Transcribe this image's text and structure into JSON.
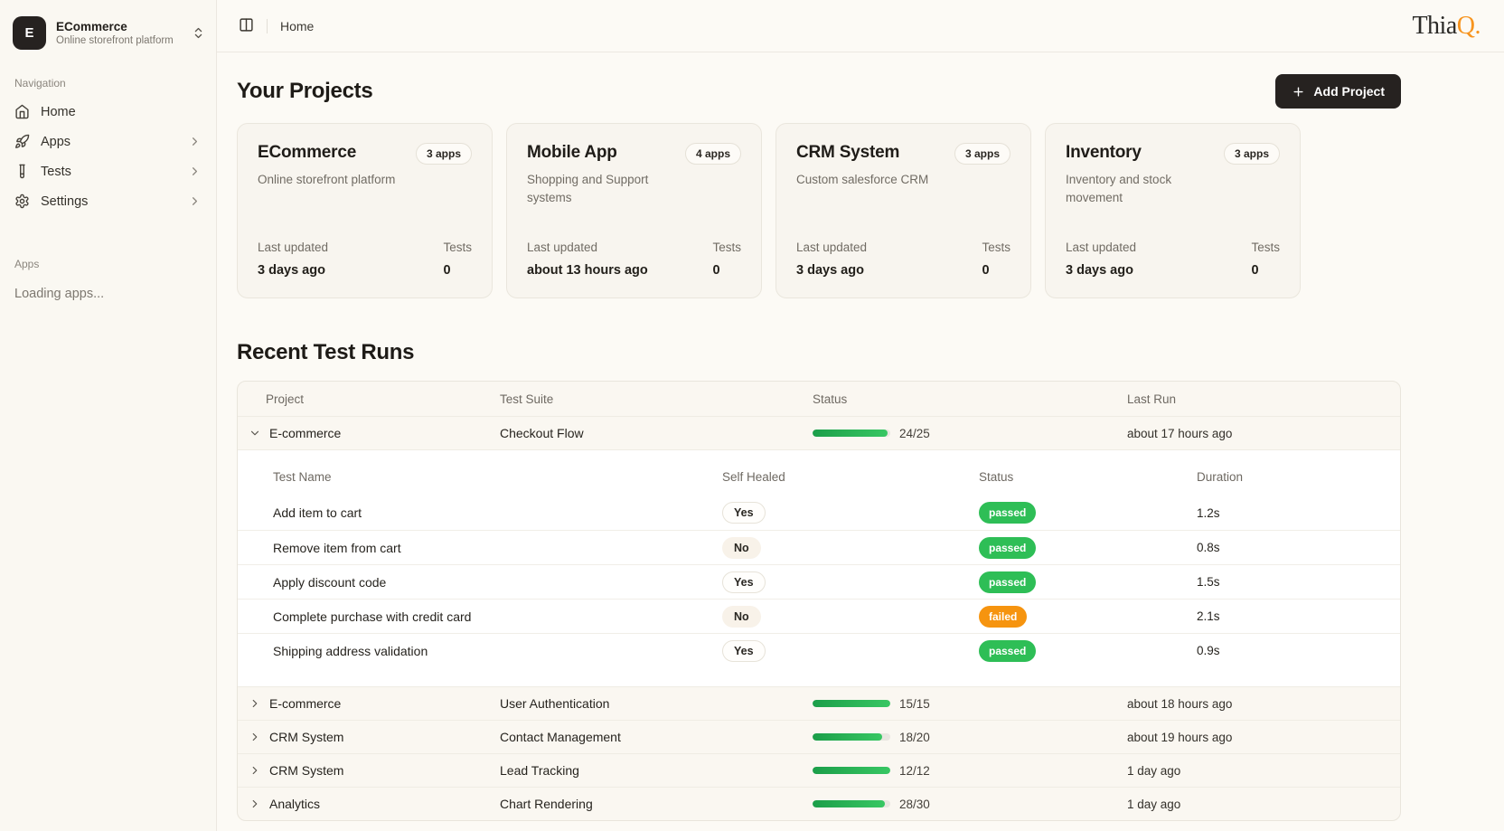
{
  "workspace": {
    "initial": "E",
    "name": "ECommerce",
    "subtitle": "Online storefront platform"
  },
  "sidebar": {
    "nav_label": "Navigation",
    "items": [
      {
        "label": "Home"
      },
      {
        "label": "Apps"
      },
      {
        "label": "Tests"
      },
      {
        "label": "Settings"
      }
    ],
    "apps_label": "Apps",
    "apps_loading": "Loading apps..."
  },
  "topbar": {
    "breadcrumb": "Home",
    "logo_prefix": "Thia",
    "logo_suffix": "Q."
  },
  "projects": {
    "title": "Your Projects",
    "add_button": "Add Project",
    "last_updated_label": "Last updated",
    "tests_label": "Tests",
    "cards": [
      {
        "name": "ECommerce",
        "apps_badge": "3 apps",
        "description": "Online storefront platform",
        "last_updated": "3 days ago",
        "tests": "0"
      },
      {
        "name": "Mobile App",
        "apps_badge": "4 apps",
        "description": "Shopping and Support systems",
        "last_updated": "about 13 hours ago",
        "tests": "0"
      },
      {
        "name": "CRM System",
        "apps_badge": "3 apps",
        "description": "Custom salesforce CRM",
        "last_updated": "3 days ago",
        "tests": "0"
      },
      {
        "name": "Inventory",
        "apps_badge": "3 apps",
        "description": "Inventory and stock movement",
        "last_updated": "3 days ago",
        "tests": "0"
      }
    ]
  },
  "test_runs": {
    "title": "Recent Test Runs",
    "columns": {
      "project": "Project",
      "suite": "Test Suite",
      "status": "Status",
      "last_run": "Last Run"
    },
    "rows": [
      {
        "project": "E-commerce",
        "suite": "Checkout Flow",
        "ratio": "24/25",
        "pct": 96,
        "last_run": "about 17 hours ago",
        "expanded": true
      },
      {
        "project": "E-commerce",
        "suite": "User Authentication",
        "ratio": "15/15",
        "pct": 100,
        "last_run": "about 18 hours ago",
        "expanded": false
      },
      {
        "project": "CRM System",
        "suite": "Contact Management",
        "ratio": "18/20",
        "pct": 90,
        "last_run": "about 19 hours ago",
        "expanded": false
      },
      {
        "project": "CRM System",
        "suite": "Lead Tracking",
        "ratio": "12/12",
        "pct": 100,
        "last_run": "1 day ago",
        "expanded": false
      },
      {
        "project": "Analytics",
        "suite": "Chart Rendering",
        "ratio": "28/30",
        "pct": 93,
        "last_run": "1 day ago",
        "expanded": false
      }
    ],
    "detail": {
      "columns": {
        "name": "Test Name",
        "self_healed": "Self Healed",
        "status": "Status",
        "duration": "Duration"
      },
      "tests": [
        {
          "name": "Add item to cart",
          "self_healed": "Yes",
          "status": "passed",
          "duration": "1.2s"
        },
        {
          "name": "Remove item from cart",
          "self_healed": "No",
          "status": "passed",
          "duration": "0.8s"
        },
        {
          "name": "Apply discount code",
          "self_healed": "Yes",
          "status": "passed",
          "duration": "1.5s"
        },
        {
          "name": "Complete purchase with credit card",
          "self_healed": "No",
          "status": "failed",
          "duration": "2.1s"
        },
        {
          "name": "Shipping address validation",
          "self_healed": "Yes",
          "status": "passed",
          "duration": "0.9s"
        }
      ]
    }
  },
  "colors": {
    "passed": "#2EBE56",
    "failed": "#F6940F",
    "accent_dark": "#262220",
    "logo_orange": "#F7941E",
    "progress_fill": "#2DBA57"
  }
}
